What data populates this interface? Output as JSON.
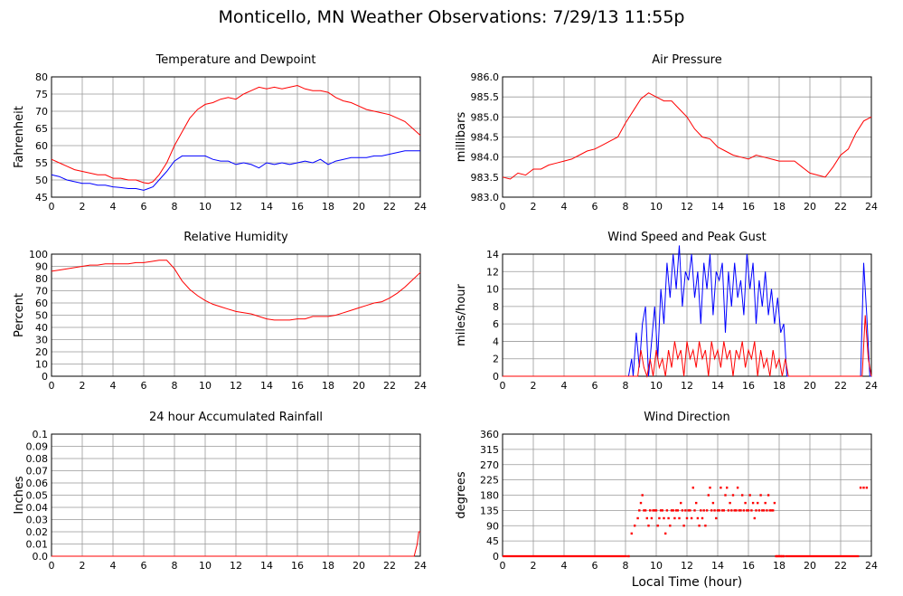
{
  "title": "Monticello, MN Weather Observations: 7/29/13 11:55p",
  "xlabel_shared": "Local Time (hour)",
  "chart_data": [
    {
      "type": "line",
      "title": "Temperature and Dewpoint",
      "ylabel": "Fahrenheit",
      "xlim": [
        0,
        24
      ],
      "ylim": [
        45,
        80
      ],
      "yticks": [
        "45",
        "50",
        "55",
        "60",
        "65",
        "70",
        "75",
        "80"
      ],
      "xticks": [
        "0",
        "2",
        "4",
        "6",
        "8",
        "10",
        "12",
        "14",
        "16",
        "18",
        "20",
        "22",
        "24"
      ],
      "grid": true,
      "series": [
        {
          "color": "#ff0000",
          "x": [
            0,
            0.5,
            1,
            1.5,
            2,
            2.5,
            3,
            3.5,
            4,
            4.5,
            5,
            5.5,
            6,
            6.3,
            6.6,
            7,
            7.5,
            8,
            8.5,
            9,
            9.5,
            10,
            10.5,
            11,
            11.5,
            12,
            12.5,
            13,
            13.5,
            14,
            14.5,
            15,
            15.5,
            16,
            16.5,
            17,
            17.5,
            18,
            18.5,
            19,
            19.5,
            20,
            20.5,
            21,
            21.5,
            22,
            22.5,
            23,
            23.5,
            24
          ],
          "y": [
            56,
            55,
            54,
            53,
            52.5,
            52,
            51.5,
            51.5,
            50.5,
            50.5,
            50,
            50,
            49.2,
            49,
            49.5,
            51.5,
            55,
            60,
            64,
            68,
            70.5,
            72,
            72.5,
            73.5,
            74,
            73.5,
            75,
            76,
            77,
            76.5,
            77,
            76.5,
            77,
            77.5,
            76.5,
            76,
            76,
            75.5,
            74,
            73,
            72.5,
            71.5,
            70.5,
            70,
            69.5,
            69,
            68,
            67,
            65,
            63
          ]
        },
        {
          "color": "#0000ff",
          "x": [
            0,
            0.5,
            1,
            1.5,
            2,
            2.5,
            3,
            3.5,
            4,
            4.5,
            5,
            5.5,
            6,
            6.3,
            6.6,
            7,
            7.5,
            8,
            8.5,
            9,
            9.5,
            10,
            10.5,
            11,
            11.5,
            12,
            12.5,
            13,
            13.5,
            14,
            14.5,
            15,
            15.5,
            16,
            16.5,
            17,
            17.5,
            18,
            18.5,
            19,
            19.5,
            20,
            20.5,
            21,
            21.5,
            22,
            22.5,
            23,
            23.5,
            24
          ],
          "y": [
            51.5,
            51,
            50,
            49.5,
            49,
            49,
            48.5,
            48.5,
            48,
            47.8,
            47.5,
            47.5,
            47,
            47.5,
            48,
            50,
            52.5,
            55.5,
            57,
            57,
            57,
            57,
            56,
            55.5,
            55.5,
            54.5,
            55,
            54.5,
            53.5,
            55,
            54.5,
            55,
            54.5,
            55,
            55.5,
            55,
            56,
            54.5,
            55.5,
            56,
            56.5,
            56.5,
            56.5,
            57,
            57,
            57.5,
            58,
            58.5,
            58.5,
            58.5
          ]
        }
      ]
    },
    {
      "type": "line",
      "title": "Air Pressure",
      "ylabel": "millibars",
      "xlim": [
        0,
        24
      ],
      "ylim": [
        983.0,
        986.0
      ],
      "yticks": [
        "983.0",
        "983.5",
        "984.0",
        "984.5",
        "985.0",
        "985.5",
        "986.0"
      ],
      "xticks": [
        "0",
        "2",
        "4",
        "6",
        "8",
        "10",
        "12",
        "14",
        "16",
        "18",
        "20",
        "22",
        "24"
      ],
      "grid": true,
      "series": [
        {
          "color": "#ff0000",
          "x": [
            0,
            0.5,
            1,
            1.5,
            2,
            2.5,
            3,
            3.5,
            4,
            4.5,
            5,
            5.5,
            6,
            6.5,
            7,
            7.5,
            8,
            8.5,
            9,
            9.5,
            10,
            10.5,
            11,
            11.5,
            12,
            12.5,
            13,
            13.5,
            14,
            14.5,
            15,
            15.5,
            16,
            16.5,
            17,
            17.5,
            18,
            18.5,
            19,
            19.5,
            20,
            20.5,
            21,
            21.5,
            22,
            22.5,
            23,
            23.5,
            24
          ],
          "y": [
            983.5,
            983.45,
            983.6,
            983.55,
            983.7,
            983.7,
            983.8,
            983.85,
            983.9,
            983.95,
            984.05,
            984.15,
            984.2,
            984.3,
            984.4,
            984.5,
            984.85,
            985.15,
            985.45,
            985.6,
            985.5,
            985.4,
            985.4,
            985.2,
            985.0,
            984.7,
            984.5,
            984.45,
            984.25,
            984.15,
            984.05,
            984.0,
            983.95,
            984.05,
            984.0,
            983.95,
            983.9,
            983.9,
            983.9,
            983.75,
            983.6,
            983.55,
            983.5,
            983.75,
            984.05,
            984.2,
            984.6,
            984.9,
            985.0
          ]
        }
      ]
    },
    {
      "type": "line",
      "title": "Relative Humidity",
      "ylabel": "Percent",
      "xlim": [
        0,
        24
      ],
      "ylim": [
        0,
        100
      ],
      "yticks": [
        "0",
        "10",
        "20",
        "30",
        "40",
        "50",
        "60",
        "70",
        "80",
        "90",
        "100"
      ],
      "xticks": [
        "0",
        "2",
        "4",
        "6",
        "8",
        "10",
        "12",
        "14",
        "16",
        "18",
        "20",
        "22",
        "24"
      ],
      "grid": true,
      "series": [
        {
          "color": "#ff0000",
          "x": [
            0,
            0.5,
            1,
            1.5,
            2,
            2.5,
            3,
            3.5,
            4,
            4.5,
            5,
            5.5,
            6,
            6.5,
            7,
            7.5,
            8,
            8.5,
            9,
            9.5,
            10,
            10.5,
            11,
            11.5,
            12,
            12.5,
            13,
            13.5,
            14,
            14.5,
            15,
            15.5,
            16,
            16.5,
            17,
            17.5,
            18,
            18.5,
            19,
            19.5,
            20,
            20.5,
            21,
            21.5,
            22,
            22.5,
            23,
            23.5,
            24
          ],
          "y": [
            86,
            87,
            88,
            89,
            90,
            91,
            91,
            92,
            92,
            92,
            92,
            93,
            93,
            94,
            95,
            95,
            88,
            78,
            71,
            66,
            62,
            59,
            57,
            55,
            53,
            52,
            51,
            49,
            47,
            46,
            46,
            46,
            47,
            47,
            49,
            49,
            49,
            50,
            52,
            54,
            56,
            58,
            60,
            61,
            64,
            68,
            73,
            79,
            85
          ]
        }
      ]
    },
    {
      "type": "line",
      "title": "Wind Speed and Peak Gust",
      "ylabel": "miles/hour",
      "xlim": [
        0,
        24
      ],
      "ylim": [
        0,
        14
      ],
      "yticks": [
        "0",
        "2",
        "4",
        "6",
        "8",
        "10",
        "12",
        "14"
      ],
      "xticks": [
        "0",
        "2",
        "4",
        "6",
        "8",
        "10",
        "12",
        "14",
        "16",
        "18",
        "20",
        "22",
        "24"
      ],
      "grid": true,
      "series": [
        {
          "color": "#0000ff",
          "x": [
            0,
            8.2,
            8.4,
            8.5,
            8.7,
            8.9,
            9.1,
            9.3,
            9.5,
            9.7,
            9.9,
            10.1,
            10.3,
            10.5,
            10.7,
            10.9,
            11.1,
            11.3,
            11.5,
            11.7,
            11.9,
            12.1,
            12.3,
            12.5,
            12.7,
            12.9,
            13.1,
            13.3,
            13.5,
            13.7,
            13.9,
            14.1,
            14.3,
            14.5,
            14.7,
            14.9,
            15.1,
            15.3,
            15.5,
            15.7,
            15.9,
            16.1,
            16.3,
            16.5,
            16.7,
            16.9,
            17.1,
            17.3,
            17.5,
            17.7,
            17.9,
            18.1,
            18.3,
            18.5,
            18.7,
            23.3,
            23.5,
            23.7,
            23.9,
            24
          ],
          "y": [
            0,
            0,
            2,
            0,
            5,
            1,
            6,
            8,
            0,
            4,
            8,
            2,
            10,
            6,
            13,
            9,
            14,
            10,
            15,
            8,
            12,
            11,
            14,
            9,
            12,
            6,
            13,
            10,
            14,
            7,
            12,
            11,
            13,
            5,
            12,
            8,
            13,
            9,
            11,
            7,
            14,
            10,
            13,
            6,
            11,
            8,
            12,
            7,
            10,
            6,
            9,
            5,
            6,
            0,
            0,
            0,
            13,
            7,
            0,
            0
          ]
        },
        {
          "color": "#ff0000",
          "x": [
            0,
            8.8,
            9.0,
            9.2,
            9.4,
            9.6,
            9.8,
            10.0,
            10.2,
            10.4,
            10.6,
            10.8,
            11.0,
            11.2,
            11.4,
            11.6,
            11.8,
            12.0,
            12.2,
            12.4,
            12.6,
            12.8,
            13.0,
            13.2,
            13.4,
            13.6,
            13.8,
            14.0,
            14.2,
            14.4,
            14.6,
            14.8,
            15.0,
            15.2,
            15.4,
            15.6,
            15.8,
            16.0,
            16.2,
            16.4,
            16.6,
            16.8,
            17.0,
            17.2,
            17.4,
            17.6,
            17.8,
            18.0,
            18.2,
            18.4,
            18.6,
            23.4,
            23.6,
            23.8,
            24
          ],
          "y": [
            0,
            0,
            3,
            1,
            0,
            2,
            0,
            3,
            1,
            2,
            0,
            3,
            1,
            4,
            2,
            3,
            0,
            4,
            2,
            3,
            1,
            4,
            2,
            3,
            0,
            4,
            2,
            3,
            1,
            4,
            2,
            3,
            0,
            3,
            2,
            4,
            1,
            3,
            2,
            4,
            0,
            3,
            1,
            2,
            0,
            3,
            1,
            2,
            0,
            2,
            0,
            0,
            7,
            2,
            0
          ]
        }
      ]
    },
    {
      "type": "line",
      "title": "24 hour Accumulated Rainfall",
      "ylabel": "Inches",
      "xlim": [
        0,
        24
      ],
      "ylim": [
        0.0,
        0.1
      ],
      "yticks": [
        "0.0",
        "0.01",
        "0.02",
        "0.03",
        "0.04",
        "0.05",
        "0.06",
        "0.07",
        "0.08",
        "0.09",
        "0.1"
      ],
      "xticks": [
        "0",
        "2",
        "4",
        "6",
        "8",
        "10",
        "12",
        "14",
        "16",
        "18",
        "20",
        "22",
        "24"
      ],
      "grid": true,
      "series": [
        {
          "color": "#ff0000",
          "x": [
            0,
            23.6,
            23.8,
            23.9,
            24
          ],
          "y": [
            0,
            0,
            0.01,
            0.02,
            0.02
          ]
        }
      ]
    },
    {
      "type": "scatter",
      "title": "Wind Direction",
      "ylabel": "degrees",
      "xlabel": "Local Time (hour)",
      "xlim": [
        0,
        24
      ],
      "ylim": [
        0,
        360
      ],
      "yticks": [
        "0",
        "45",
        "90",
        "135",
        "180",
        "225",
        "270",
        "315",
        "360"
      ],
      "xticks": [
        "0",
        "2",
        "4",
        "6",
        "8",
        "10",
        "12",
        "14",
        "16",
        "18",
        "20",
        "22",
        "24"
      ],
      "grid": true,
      "series": [
        {
          "color": "#ff0000",
          "x": [
            8.2,
            8.4,
            8.6,
            8.8,
            8.9,
            9.0,
            9.1,
            9.2,
            9.3,
            9.4,
            9.5,
            9.6,
            9.7,
            9.8,
            9.9,
            10.0,
            10.1,
            10.2,
            10.3,
            10.4,
            10.5,
            10.6,
            10.7,
            10.8,
            10.9,
            11.0,
            11.1,
            11.2,
            11.3,
            11.4,
            11.5,
            11.6,
            11.7,
            11.8,
            11.9,
            12.0,
            12.1,
            12.2,
            12.3,
            12.4,
            12.5,
            12.6,
            12.7,
            12.8,
            12.9,
            13.0,
            13.1,
            13.2,
            13.3,
            13.4,
            13.5,
            13.6,
            13.7,
            13.8,
            13.9,
            14.0,
            14.1,
            14.2,
            14.3,
            14.4,
            14.5,
            14.6,
            14.7,
            14.8,
            14.9,
            15.0,
            15.1,
            15.2,
            15.3,
            15.4,
            15.5,
            15.6,
            15.7,
            15.8,
            15.9,
            16.0,
            16.1,
            16.2,
            16.3,
            16.4,
            16.5,
            16.6,
            16.7,
            16.8,
            16.9,
            17.0,
            17.1,
            17.2,
            17.3,
            17.4,
            17.5,
            17.6,
            17.7,
            17.8,
            17.9,
            18.0,
            18.1,
            18.2,
            18.3,
            23.3,
            23.5,
            23.7
          ],
          "y": [
            0,
            67,
            90,
            112,
            135,
            157,
            180,
            135,
            135,
            112,
            90,
            135,
            112,
            135,
            135,
            135,
            90,
            112,
            135,
            135,
            112,
            67,
            135,
            112,
            90,
            135,
            135,
            112,
            135,
            135,
            112,
            157,
            135,
            90,
            135,
            112,
            135,
            135,
            112,
            202,
            135,
            157,
            112,
            90,
            135,
            112,
            135,
            90,
            135,
            180,
            202,
            135,
            157,
            135,
            112,
            135,
            135,
            202,
            135,
            135,
            180,
            202,
            135,
            157,
            135,
            180,
            135,
            135,
            202,
            135,
            135,
            180,
            135,
            157,
            135,
            135,
            180,
            135,
            157,
            112,
            135,
            157,
            135,
            180,
            135,
            135,
            157,
            135,
            180,
            135,
            135,
            135,
            157,
            0,
            0,
            0,
            0,
            0,
            0,
            202,
            202,
            202
          ]
        }
      ]
    }
  ]
}
